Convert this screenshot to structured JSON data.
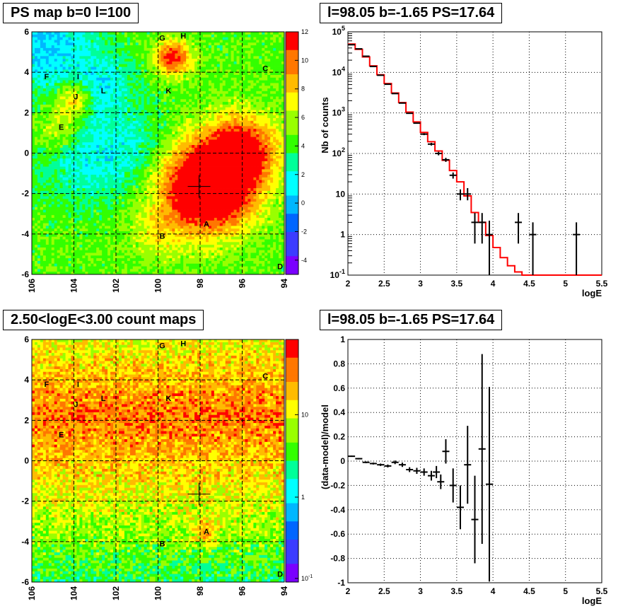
{
  "colors": {
    "palette": [
      "#7a00ff",
      "#3c3cff",
      "#0066ff",
      "#00b7ff",
      "#00ffff",
      "#00ff99",
      "#33ff00",
      "#99ff00",
      "#ffff00",
      "#ffbb00",
      "#ff7700",
      "#ff0000"
    ],
    "model_line": "#ff0000",
    "data_marker": "#000000"
  },
  "chart_data": [
    {
      "type": "heatmap",
      "title": "PS map b=0 l=100",
      "xlim": [
        106,
        94
      ],
      "ylim": [
        -6,
        6
      ],
      "x_ticks": [
        "106",
        "104",
        "102",
        "100",
        "98",
        "96",
        "94"
      ],
      "y_ticks": [
        "6",
        "4",
        "2",
        "0",
        "-2",
        "-4",
        "-6"
      ],
      "colorbar": {
        "range": [
          -5,
          12
        ],
        "ticks": [
          "12",
          "10",
          "8",
          "6",
          "4",
          "2",
          "0",
          "-2",
          "-4"
        ]
      },
      "grid": true,
      "crosshair": {
        "l": 98.05,
        "b": -1.65
      },
      "sources": [
        {
          "label": "G",
          "l": 99.8,
          "b": 5.7
        },
        {
          "label": "H",
          "l": 98.8,
          "b": 5.8
        },
        {
          "label": "C",
          "l": 94.9,
          "b": 4.2
        },
        {
          "label": "F",
          "l": 105.3,
          "b": 3.8
        },
        {
          "label": "I",
          "l": 103.8,
          "b": 3.8
        },
        {
          "label": "J",
          "l": 103.9,
          "b": 2.8
        },
        {
          "label": "L",
          "l": 102.6,
          "b": 3.1
        },
        {
          "label": "K",
          "l": 99.5,
          "b": 3.1
        },
        {
          "label": "E",
          "l": 104.6,
          "b": 1.3
        },
        {
          "label": "A",
          "l": 97.7,
          "b": -3.5
        },
        {
          "label": "B",
          "l": 99.8,
          "b": -4.1
        },
        {
          "label": "D",
          "l": 94.2,
          "b": -5.6
        }
      ],
      "hotspots": [
        {
          "l": 97.6,
          "b": -1.7,
          "amp": 12,
          "sigma": 1.5
        },
        {
          "l": 96.0,
          "b": 0.2,
          "amp": 7,
          "sigma": 1.2
        },
        {
          "l": 99.3,
          "b": 4.7,
          "amp": 7,
          "sigma": 0.6
        },
        {
          "l": 104.0,
          "b": 2.7,
          "amp": 5,
          "sigma": 0.6
        },
        {
          "l": 104.7,
          "b": 1.2,
          "amp": 3,
          "sigma": 0.7
        },
        {
          "l": 100.0,
          "b": -4.0,
          "amp": 2,
          "sigma": 1.0
        }
      ],
      "base_level": 4.5,
      "cold_regions": [
        {
          "l": 105.5,
          "b": 5.5,
          "amp": -4,
          "sigma": 1.6
        },
        {
          "l": 102.8,
          "b": 3.3,
          "amp": -3,
          "sigma": 1.2
        },
        {
          "l": 103.5,
          "b": -0.5,
          "amp": -2.5,
          "sigma": 1.5
        },
        {
          "l": 101.3,
          "b": 0.3,
          "amp": -2,
          "sigma": 1.2
        }
      ]
    },
    {
      "type": "line",
      "title": "l=98.05 b=-1.65 PS=17.64",
      "xlabel": "logE",
      "ylabel": "Nb of counts",
      "log_y": true,
      "xlim": [
        2,
        5.5
      ],
      "ylim": [
        0.1,
        100000
      ],
      "x_ticks": [
        "2",
        "2.5",
        "3",
        "3.5",
        "4",
        "4.5",
        "5",
        "5.5"
      ],
      "y_ticks": [
        {
          "value": 0.1,
          "base": "10",
          "exp": "-1"
        },
        {
          "value": 1,
          "base": "1",
          "exp": ""
        },
        {
          "value": 10,
          "base": "10",
          "exp": ""
        },
        {
          "value": 100,
          "base": "10",
          "exp": "2"
        },
        {
          "value": 1000,
          "base": "10",
          "exp": "3"
        },
        {
          "value": 10000,
          "base": "10",
          "exp": "4"
        },
        {
          "value": 100000,
          "base": "10",
          "exp": "5"
        }
      ],
      "grid": true,
      "model_bins": [
        {
          "x0": 2.0,
          "x1": 2.1,
          "y": 50000
        },
        {
          "x0": 2.1,
          "x1": 2.2,
          "y": 37000
        },
        {
          "x0": 2.2,
          "x1": 2.3,
          "y": 24000
        },
        {
          "x0": 2.3,
          "x1": 2.4,
          "y": 14500
        },
        {
          "x0": 2.4,
          "x1": 2.5,
          "y": 8700
        },
        {
          "x0": 2.5,
          "x1": 2.6,
          "y": 5300
        },
        {
          "x0": 2.6,
          "x1": 2.7,
          "y": 3100
        },
        {
          "x0": 2.7,
          "x1": 2.8,
          "y": 1800
        },
        {
          "x0": 2.8,
          "x1": 2.9,
          "y": 1050
        },
        {
          "x0": 2.9,
          "x1": 3.0,
          "y": 600
        },
        {
          "x0": 3.0,
          "x1": 3.1,
          "y": 330
        },
        {
          "x0": 3.1,
          "x1": 3.2,
          "y": 195
        },
        {
          "x0": 3.2,
          "x1": 3.3,
          "y": 115
        },
        {
          "x0": 3.3,
          "x1": 3.4,
          "y": 68
        },
        {
          "x0": 3.4,
          "x1": 3.5,
          "y": 38
        },
        {
          "x0": 3.5,
          "x1": 3.6,
          "y": 20
        },
        {
          "x0": 3.6,
          "x1": 3.7,
          "y": 9
        },
        {
          "x0": 3.7,
          "x1": 3.8,
          "y": 3.5
        },
        {
          "x0": 3.8,
          "x1": 3.9,
          "y": 2.0
        },
        {
          "x0": 3.9,
          "x1": 4.0,
          "y": 0.95
        },
        {
          "x0": 4.0,
          "x1": 4.1,
          "y": 0.48
        },
        {
          "x0": 4.1,
          "x1": 4.2,
          "y": 0.27
        },
        {
          "x0": 4.2,
          "x1": 4.3,
          "y": 0.17
        },
        {
          "x0": 4.3,
          "x1": 4.4,
          "y": 0.12
        },
        {
          "x0": 4.4,
          "x1": 5.5,
          "y": 0.1
        }
      ],
      "data_points": [
        {
          "x": 2.05,
          "y": 48000,
          "lo": 47500,
          "hi": 48500
        },
        {
          "x": 2.15,
          "y": 38000,
          "lo": 37600,
          "hi": 38400
        },
        {
          "x": 2.25,
          "y": 25000,
          "lo": 24700,
          "hi": 25300
        },
        {
          "x": 2.35,
          "y": 14000,
          "lo": 13800,
          "hi": 14200
        },
        {
          "x": 2.45,
          "y": 8500,
          "lo": 8400,
          "hi": 8600
        },
        {
          "x": 2.55,
          "y": 5100,
          "lo": 5000,
          "hi": 5200
        },
        {
          "x": 2.65,
          "y": 3000,
          "lo": 2950,
          "hi": 3050
        },
        {
          "x": 2.75,
          "y": 1750,
          "lo": 1700,
          "hi": 1800
        },
        {
          "x": 2.85,
          "y": 980,
          "lo": 950,
          "hi": 1010
        },
        {
          "x": 2.95,
          "y": 560,
          "lo": 540,
          "hi": 580
        },
        {
          "x": 3.05,
          "y": 300,
          "lo": 283,
          "hi": 317
        },
        {
          "x": 3.15,
          "y": 170,
          "lo": 157,
          "hi": 183
        },
        {
          "x": 3.25,
          "y": 100,
          "lo": 90,
          "hi": 110
        },
        {
          "x": 3.35,
          "y": 70,
          "lo": 62,
          "hi": 78
        },
        {
          "x": 3.45,
          "y": 29,
          "lo": 24,
          "hi": 34
        },
        {
          "x": 3.55,
          "y": 10,
          "lo": 7,
          "hi": 13
        },
        {
          "x": 3.65,
          "y": 10,
          "lo": 7,
          "hi": 14
        },
        {
          "x": 3.75,
          "y": 2,
          "lo": 0.6,
          "hi": 3.4
        },
        {
          "x": 3.85,
          "y": 2,
          "lo": 0.6,
          "hi": 3.4
        },
        {
          "x": 3.95,
          "y": 1,
          "lo": 0.1,
          "hi": 2.2
        },
        {
          "x": 4.35,
          "y": 2,
          "lo": 0.6,
          "hi": 3.4
        },
        {
          "x": 4.55,
          "y": 1,
          "lo": 0.1,
          "hi": 2.0
        },
        {
          "x": 5.15,
          "y": 1,
          "lo": 0.1,
          "hi": 2.0
        }
      ]
    },
    {
      "type": "heatmap",
      "title": "2.50<logE<3.00 count maps",
      "xlim": [
        106,
        94
      ],
      "ylim": [
        -6,
        6
      ],
      "x_ticks": [
        "106",
        "104",
        "102",
        "100",
        "98",
        "96",
        "94"
      ],
      "y_ticks": [
        "6",
        "4",
        "2",
        "0",
        "-2",
        "-4",
        "-6"
      ],
      "colorbar": {
        "log": true,
        "ticks": [
          {
            "base": "10",
            "exp": ""
          },
          {
            "base": "1",
            "exp": ""
          },
          {
            "base": "10",
            "exp": "-1"
          }
        ]
      },
      "grid": true,
      "crosshair": {
        "l": 98.05,
        "b": -1.65
      },
      "sources": [
        {
          "label": "G",
          "l": 99.8,
          "b": 5.7
        },
        {
          "label": "H",
          "l": 98.8,
          "b": 5.8
        },
        {
          "label": "C",
          "l": 94.9,
          "b": 4.2
        },
        {
          "label": "F",
          "l": 105.3,
          "b": 3.8
        },
        {
          "label": "I",
          "l": 103.8,
          "b": 3.8
        },
        {
          "label": "J",
          "l": 103.9,
          "b": 2.8
        },
        {
          "label": "L",
          "l": 102.6,
          "b": 3.1
        },
        {
          "label": "K",
          "l": 99.5,
          "b": 3.1
        },
        {
          "label": "E",
          "l": 104.6,
          "b": 1.3
        },
        {
          "label": "A",
          "l": 97.7,
          "b": -3.5
        },
        {
          "label": "B",
          "l": 99.8,
          "b": -4.1
        },
        {
          "label": "D",
          "l": 94.2,
          "b": -5.6
        }
      ]
    },
    {
      "type": "scatter",
      "title": "l=98.05 b=-1.65 PS=17.64",
      "xlabel": "logE",
      "ylabel": "(data-model)/model",
      "xlim": [
        2,
        5.5
      ],
      "ylim": [
        -1,
        1
      ],
      "x_ticks": [
        "2",
        "2.5",
        "3",
        "3.5",
        "4",
        "4.5",
        "5",
        "5.5"
      ],
      "y_ticks": [
        "1",
        "0.8",
        "0.6",
        "0.4",
        "0.2",
        "0",
        "-0.2",
        "-0.4",
        "-0.6",
        "-0.8",
        "-1"
      ],
      "grid": true,
      "points": [
        {
          "x": 2.05,
          "y": 0.04,
          "e": 0.005
        },
        {
          "x": 2.15,
          "y": 0.02,
          "e": 0.006
        },
        {
          "x": 2.25,
          "y": -0.01,
          "e": 0.007
        },
        {
          "x": 2.35,
          "y": -0.02,
          "e": 0.008
        },
        {
          "x": 2.45,
          "y": -0.03,
          "e": 0.01
        },
        {
          "x": 2.55,
          "y": -0.04,
          "e": 0.012
        },
        {
          "x": 2.65,
          "y": -0.01,
          "e": 0.015
        },
        {
          "x": 2.75,
          "y": -0.03,
          "e": 0.018
        },
        {
          "x": 2.85,
          "y": -0.07,
          "e": 0.02
        },
        {
          "x": 2.95,
          "y": -0.08,
          "e": 0.025
        },
        {
          "x": 3.05,
          "y": -0.09,
          "e": 0.03
        },
        {
          "x": 3.15,
          "y": -0.12,
          "e": 0.04
        },
        {
          "x": 3.22,
          "y": -0.09,
          "e": 0.05
        },
        {
          "x": 3.28,
          "y": -0.17,
          "e": 0.06
        },
        {
          "x": 3.35,
          "y": 0.08,
          "e": 0.1
        },
        {
          "x": 3.45,
          "y": -0.2,
          "e": 0.14
        },
        {
          "x": 3.55,
          "y": -0.38,
          "e": 0.18
        },
        {
          "x": 3.65,
          "y": -0.03,
          "e": 0.32
        },
        {
          "x": 3.75,
          "y": -0.48,
          "e": 0.36
        },
        {
          "x": 3.85,
          "y": 0.1,
          "e": 0.78
        },
        {
          "x": 3.95,
          "y": -0.19,
          "e": 0.8
        }
      ]
    }
  ]
}
